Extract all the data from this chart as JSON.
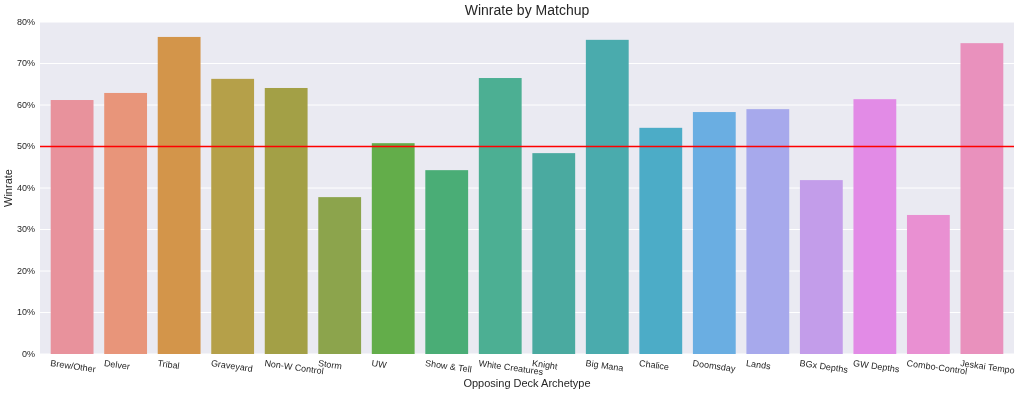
{
  "chart_data": {
    "type": "bar",
    "title": "Winrate by Matchup",
    "xlabel": "Opposing Deck Archetype",
    "ylabel": "Winrate",
    "categories": [
      "Brew/Other",
      "Delver",
      "Tribal",
      "Graveyard",
      "Non-W Control",
      "Storm",
      "UW",
      "Show & Tell",
      "White Creatures",
      "Knight",
      "Big Mana",
      "Chalice",
      "Doomsday",
      "Lands",
      "BGx Depths",
      "GW Depths",
      "Combo-Control",
      "Jeskai Tempo"
    ],
    "values": [
      0.612,
      0.629,
      0.764,
      0.663,
      0.641,
      0.378,
      0.508,
      0.443,
      0.665,
      0.484,
      0.757,
      0.545,
      0.583,
      0.59,
      0.419,
      0.614,
      0.335,
      0.749
    ],
    "colors": [
      "#e8929c",
      "#e8957a",
      "#d3954a",
      "#b5a049",
      "#a3a046",
      "#8ca44c",
      "#63ad4a",
      "#4aad76",
      "#4caf93",
      "#4aaaa0",
      "#4aabad",
      "#4cacc7",
      "#6aaee2",
      "#a7a9ec",
      "#c39dea",
      "#e28be6",
      "#e990d2",
      "#e991bd"
    ],
    "ylim": [
      0,
      0.8
    ],
    "yticks": [
      {
        "value": 0,
        "label": "0%"
      },
      {
        "value": 0.1,
        "label": "10%"
      },
      {
        "value": 0.2,
        "label": "20%"
      },
      {
        "value": 0.3,
        "label": "30%"
      },
      {
        "value": 0.4,
        "label": "40%"
      },
      {
        "value": 0.5,
        "label": "50%"
      },
      {
        "value": 0.6,
        "label": "60%"
      },
      {
        "value": 0.7,
        "label": "70%"
      },
      {
        "value": 0.8,
        "label": "80%"
      }
    ],
    "grid": "y",
    "ref_lines": [
      {
        "axis": "y",
        "value": 0.5,
        "color": "#ff0000"
      }
    ]
  }
}
